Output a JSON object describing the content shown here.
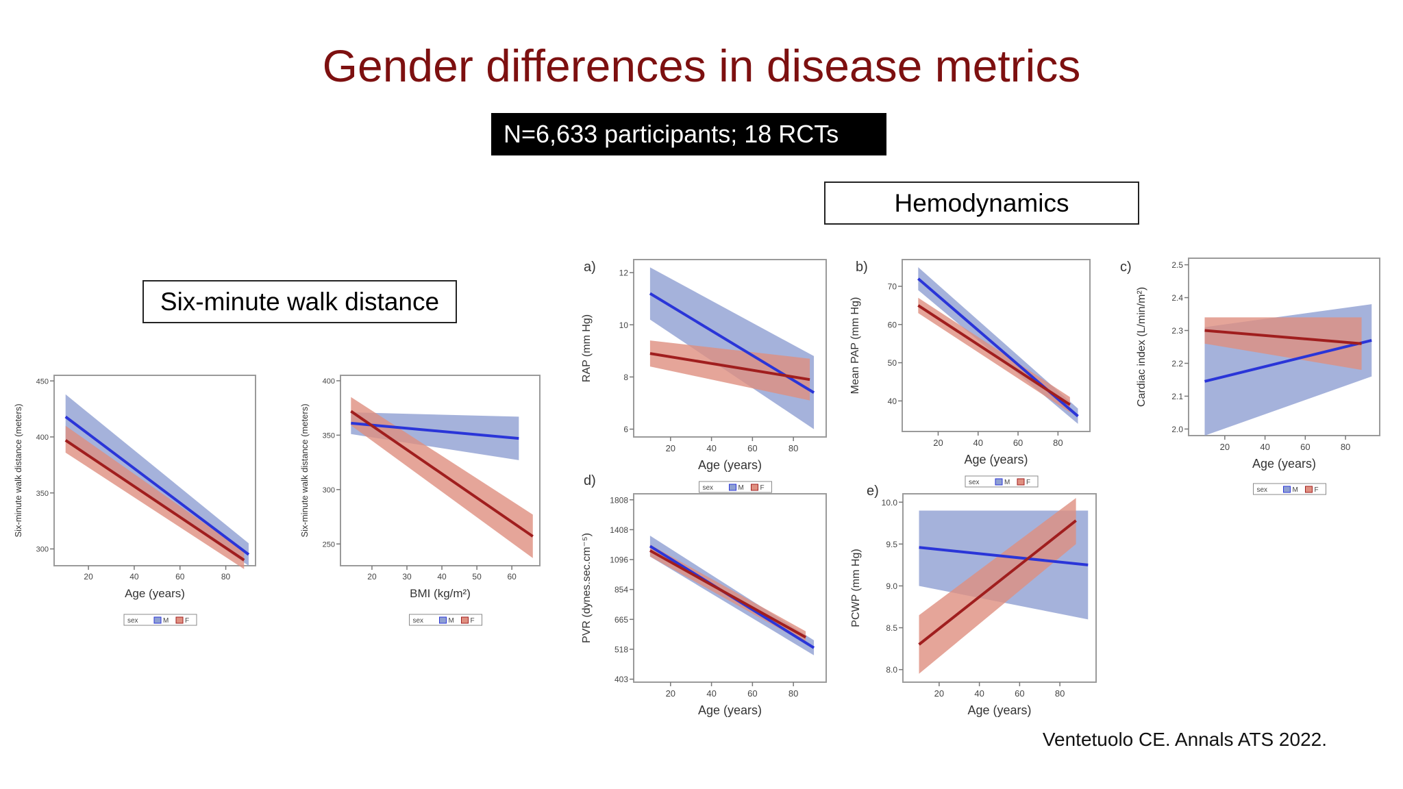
{
  "slide": {
    "title": "Gender differences in disease metrics",
    "subtitle": "N=6,633 participants; 18 RCTs",
    "hemodynamics_label": "Hemodynamics",
    "smwd_label": "Six-minute walk distance",
    "citation": "Ventetuolo CE. Annals ATS 2022."
  },
  "colors": {
    "title": "#7d1010",
    "male_line": "#2a35d8",
    "male_band": "#8e9fd2",
    "female_line": "#a01e1e",
    "female_band": "#df8f80"
  },
  "chart_data": [
    {
      "id": "smwd_age",
      "panel": "",
      "type": "line",
      "xlabel": "Age (years)",
      "ylabel": "Six-minute walk distance (meters)",
      "xlim": [
        5,
        93
      ],
      "ylim": [
        285,
        455
      ],
      "xticks": [
        20,
        40,
        60,
        80
      ],
      "xtick_labels": [
        "20",
        "40",
        "60",
        "80"
      ],
      "yticks": [
        300,
        350,
        400,
        450
      ],
      "ytick_labels": [
        "300",
        "350",
        "400",
        "450"
      ],
      "legend": {
        "title": "sex",
        "items": [
          "M",
          "F"
        ]
      },
      "series": [
        {
          "name": "M",
          "x": [
            10,
            90
          ],
          "y": [
            418,
            295
          ],
          "lo": [
            398,
            285
          ],
          "hi": [
            438,
            305
          ]
        },
        {
          "name": "F",
          "x": [
            10,
            88
          ],
          "y": [
            397,
            290
          ],
          "lo": [
            386,
            282
          ],
          "hi": [
            410,
            298
          ]
        }
      ]
    },
    {
      "id": "smwd_bmi",
      "panel": "",
      "type": "line",
      "xlabel": "BMI (kg/m²)",
      "ylabel": "Six-minute walk distance (meters)",
      "xlim": [
        11,
        68
      ],
      "ylim": [
        230,
        405
      ],
      "xticks": [
        20,
        30,
        40,
        50,
        60
      ],
      "xtick_labels": [
        "20",
        "30",
        "40",
        "50",
        "60"
      ],
      "yticks": [
        250,
        300,
        350,
        400
      ],
      "ytick_labels": [
        "250",
        "300",
        "350",
        "400"
      ],
      "legend": {
        "title": "sex",
        "items": [
          "M",
          "F"
        ]
      },
      "series": [
        {
          "name": "M",
          "x": [
            14,
            62
          ],
          "y": [
            361,
            347
          ],
          "lo": [
            351,
            327
          ],
          "hi": [
            371,
            367
          ]
        },
        {
          "name": "F",
          "x": [
            14,
            66
          ],
          "y": [
            372,
            257
          ],
          "lo": [
            359,
            237
          ],
          "hi": [
            385,
            277
          ]
        }
      ]
    },
    {
      "id": "rap",
      "panel": "a)",
      "type": "line",
      "xlabel": "Age (years)",
      "ylabel": "RAP (mm Hg)",
      "xlim": [
        2,
        96
      ],
      "ylim": [
        5.7,
        12.5
      ],
      "xticks": [
        20,
        40,
        60,
        80
      ],
      "xtick_labels": [
        "20",
        "40",
        "60",
        "80"
      ],
      "yticks": [
        6,
        8,
        10,
        12
      ],
      "ytick_labels": [
        "6",
        "8",
        "10",
        "12"
      ],
      "legend": {
        "title": "sex",
        "items": [
          "M",
          "F"
        ]
      },
      "series": [
        {
          "name": "M",
          "x": [
            10,
            90
          ],
          "y": [
            11.2,
            7.4
          ],
          "lo": [
            10.2,
            6.0
          ],
          "hi": [
            12.2,
            8.8
          ]
        },
        {
          "name": "F",
          "x": [
            10,
            88
          ],
          "y": [
            8.9,
            7.9
          ],
          "lo": [
            8.4,
            7.1
          ],
          "hi": [
            9.4,
            8.7
          ]
        }
      ]
    },
    {
      "id": "mpap",
      "panel": "b)",
      "type": "line",
      "xlabel": "Age (years)",
      "ylabel": "Mean PAP (mm Hg)",
      "xlim": [
        2,
        96
      ],
      "ylim": [
        32,
        77
      ],
      "xticks": [
        20,
        40,
        60,
        80
      ],
      "xtick_labels": [
        "20",
        "40",
        "60",
        "80"
      ],
      "yticks": [
        40,
        50,
        60,
        70
      ],
      "ytick_labels": [
        "40",
        "50",
        "60",
        "70"
      ],
      "legend": {
        "title": "sex",
        "items": [
          "M",
          "F"
        ]
      },
      "series": [
        {
          "name": "M",
          "x": [
            10,
            90
          ],
          "y": [
            72,
            36
          ],
          "lo": [
            69,
            34
          ],
          "hi": [
            75,
            38
          ]
        },
        {
          "name": "F",
          "x": [
            10,
            86
          ],
          "y": [
            65,
            39
          ],
          "lo": [
            63,
            37
          ],
          "hi": [
            67,
            41
          ]
        }
      ]
    },
    {
      "id": "ci",
      "panel": "c)",
      "type": "line",
      "xlabel": "Age (years)",
      "ylabel": "Cardiac index (L/min/m²)",
      "xlim": [
        2,
        97
      ],
      "ylim": [
        1.98,
        2.52
      ],
      "xticks": [
        20,
        40,
        60,
        80
      ],
      "xtick_labels": [
        "20",
        "40",
        "60",
        "80"
      ],
      "yticks": [
        2.0,
        2.1,
        2.2,
        2.3,
        2.4,
        2.5
      ],
      "ytick_labels": [
        "2.0",
        "2.1",
        "2.2",
        "2.3",
        "2.4",
        "2.5"
      ],
      "legend": {
        "title": "sex",
        "items": [
          "M",
          "F"
        ]
      },
      "series": [
        {
          "name": "M",
          "x": [
            10,
            93
          ],
          "y": [
            2.145,
            2.27
          ],
          "lo": [
            1.98,
            2.16
          ],
          "hi": [
            2.31,
            2.38
          ]
        },
        {
          "name": "F",
          "x": [
            10,
            88
          ],
          "y": [
            2.3,
            2.26
          ],
          "lo": [
            2.26,
            2.18
          ],
          "hi": [
            2.34,
            2.34
          ]
        }
      ]
    },
    {
      "id": "pvr",
      "panel": "d)",
      "type": "line",
      "xlabel": "Age (years)",
      "ylabel": "PVR (dynes.sec.cm⁻⁵)",
      "xlim": [
        2,
        96
      ],
      "ylim": [
        -0.1,
        6.2
      ],
      "xticks": [
        20,
        40,
        60,
        80
      ],
      "xtick_labels": [
        "20",
        "40",
        "60",
        "80"
      ],
      "yticks": [
        0,
        1,
        2,
        3,
        4,
        5,
        6
      ],
      "ytick_labels": [
        "403",
        "518",
        "665",
        "854",
        "1096",
        "1408",
        "1808"
      ],
      "legend": {
        "title": "",
        "items": []
      },
      "series": [
        {
          "name": "M",
          "x": [
            10,
            90
          ],
          "y": [
            4.45,
            1.05
          ],
          "lo": [
            4.1,
            0.8
          ],
          "hi": [
            4.8,
            1.3
          ]
        },
        {
          "name": "F",
          "x": [
            10,
            86
          ],
          "y": [
            4.3,
            1.4
          ],
          "lo": [
            4.1,
            1.2
          ],
          "hi": [
            4.5,
            1.6
          ]
        }
      ]
    },
    {
      "id": "pcwp",
      "panel": "e)",
      "type": "line",
      "xlabel": "Age (years)",
      "ylabel": "PCWP (mm Hg)",
      "xlim": [
        2,
        98
      ],
      "ylim": [
        7.85,
        10.1
      ],
      "xticks": [
        20,
        40,
        60,
        80
      ],
      "xtick_labels": [
        "20",
        "40",
        "60",
        "80"
      ],
      "yticks": [
        8.0,
        8.5,
        9.0,
        9.5,
        10.0
      ],
      "ytick_labels": [
        "8.0",
        "8.5",
        "9.0",
        "9.5",
        "10.0"
      ],
      "legend": {
        "title": "",
        "items": []
      },
      "series": [
        {
          "name": "M",
          "x": [
            10,
            94
          ],
          "y": [
            9.46,
            9.25
          ],
          "lo": [
            9.0,
            8.6
          ],
          "hi": [
            9.9,
            9.9
          ]
        },
        {
          "name": "F",
          "x": [
            10,
            88
          ],
          "y": [
            8.3,
            9.78
          ],
          "lo": [
            7.95,
            9.5
          ],
          "hi": [
            8.65,
            10.05
          ]
        }
      ]
    }
  ]
}
